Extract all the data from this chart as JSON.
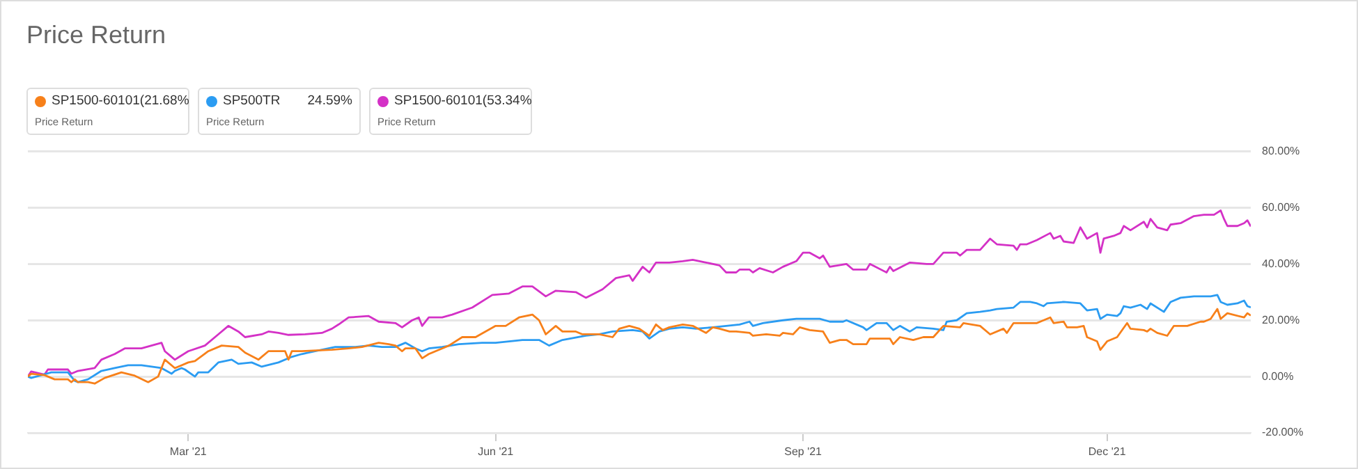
{
  "chart_data": {
    "type": "line",
    "title": "Price Return",
    "legend": "top left",
    "grid": "y",
    "marker": "none",
    "line_style": "solid",
    "xlim": [
      "2021-01-12",
      "2022-01-13"
    ],
    "xticks": [
      {
        "value": "2021-03-01",
        "label": "Mar '21"
      },
      {
        "value": "2021-06-01",
        "label": "Jun '21"
      },
      {
        "value": "2021-09-01",
        "label": "Sep '21"
      },
      {
        "value": "2021-12-01",
        "label": "Dec '21"
      }
    ],
    "ylim": [
      -20,
      80
    ],
    "yticks": [
      {
        "value": -20,
        "label": "-20.00%"
      },
      {
        "value": 0,
        "label": "0.00%"
      },
      {
        "value": 20,
        "label": "20.00%"
      },
      {
        "value": 40,
        "label": "40.00%"
      },
      {
        "value": 60,
        "label": "60.00%"
      },
      {
        "value": 80,
        "label": "80.00%"
      }
    ],
    "annotations": [
      "21.68%",
      "Price Return",
      "24.59%",
      "Price Return",
      "53.34%",
      "Price Return"
    ],
    "series": [
      {
        "name": "SP1500-60101(",
        "color": "#f7801a",
        "x": [
          "2021-01-12",
          "2021-01-13",
          "2021-01-17",
          "2021-01-20",
          "2021-01-24",
          "2021-01-25",
          "2021-01-26",
          "2021-01-27",
          "2021-01-30",
          "2021-02-01",
          "2021-02-04",
          "2021-02-09",
          "2021-02-13",
          "2021-02-17",
          "2021-02-20",
          "2021-02-22",
          "2021-02-25",
          "2021-02-27",
          "2021-03-01",
          "2021-03-03",
          "2021-03-07",
          "2021-03-11",
          "2021-03-16",
          "2021-03-18",
          "2021-03-22",
          "2021-03-25",
          "2021-03-30",
          "2021-03-31",
          "2021-04-01",
          "2021-04-04",
          "2021-04-13",
          "2021-04-18",
          "2021-04-22",
          "2021-04-27",
          "2021-04-30",
          "2021-05-02",
          "2021-05-04",
          "2021-05-05",
          "2021-05-08",
          "2021-05-10",
          "2021-05-12",
          "2021-05-16",
          "2021-05-18",
          "2021-05-22",
          "2021-05-26",
          "2021-06-01",
          "2021-06-04",
          "2021-06-08",
          "2021-06-12",
          "2021-06-14",
          "2021-06-16",
          "2021-06-19",
          "2021-06-21",
          "2021-06-25",
          "2021-06-27",
          "2021-07-02",
          "2021-07-06",
          "2021-07-08",
          "2021-07-11",
          "2021-07-14",
          "2021-07-17",
          "2021-07-19",
          "2021-07-21",
          "2021-07-23",
          "2021-07-27",
          "2021-07-30",
          "2021-08-03",
          "2021-08-05",
          "2021-08-07",
          "2021-08-10",
          "2021-08-12",
          "2021-08-16",
          "2021-08-17",
          "2021-08-21",
          "2021-08-25",
          "2021-08-26",
          "2021-08-29",
          "2021-08-31",
          "2021-09-03",
          "2021-09-07",
          "2021-09-09",
          "2021-09-12",
          "2021-09-14",
          "2021-09-16",
          "2021-09-20",
          "2021-09-21",
          "2021-09-27",
          "2021-09-28",
          "2021-09-30",
          "2021-10-04",
          "2021-10-07",
          "2021-10-10",
          "2021-10-13",
          "2021-10-18",
          "2021-10-19",
          "2021-10-24",
          "2021-10-27",
          "2021-10-31",
          "2021-11-01",
          "2021-11-03",
          "2021-11-10",
          "2021-11-14",
          "2021-11-15",
          "2021-11-18",
          "2021-11-19",
          "2021-11-22",
          "2021-11-24",
          "2021-11-25",
          "2021-11-28",
          "2021-11-29",
          "2021-12-01",
          "2021-12-04",
          "2021-12-07",
          "2021-12-08",
          "2021-12-12",
          "2021-12-13",
          "2021-12-14",
          "2021-12-16",
          "2021-12-19",
          "2021-12-21",
          "2021-12-25",
          "2021-12-29",
          "2021-12-30",
          "2022-01-01",
          "2022-01-03",
          "2022-01-04",
          "2022-01-06",
          "2022-01-11",
          "2022-01-12",
          "2022-01-13"
        ],
        "values": [
          0,
          1,
          0.5,
          -1,
          -1,
          -2,
          -1,
          -2,
          -2,
          -2.5,
          -0.5,
          1.5,
          0.3,
          -2,
          0,
          6,
          3,
          4,
          5,
          5.5,
          9,
          11,
          10.5,
          8.5,
          6,
          9,
          9,
          6,
          9,
          9,
          9.5,
          10,
          10.5,
          12,
          11.5,
          11,
          9,
          10,
          10,
          6.5,
          8,
          10,
          11,
          14,
          14,
          18,
          18,
          21,
          22,
          20,
          15,
          18,
          16,
          16,
          15,
          15,
          14,
          17,
          18,
          17,
          14.5,
          18.5,
          16.5,
          17.5,
          18.5,
          18,
          15.5,
          17.5,
          17,
          16,
          16,
          15.5,
          14.5,
          15,
          14.5,
          15.5,
          15,
          17.5,
          16.5,
          16,
          12,
          13,
          13,
          11.5,
          11.5,
          13.5,
          13.5,
          11.5,
          14,
          13,
          14,
          14,
          18,
          17.5,
          19,
          18,
          15,
          17,
          15.5,
          19,
          19,
          21,
          19,
          19.5,
          17.5,
          17.5,
          18,
          14,
          12.5,
          9.5,
          12.5,
          14,
          19,
          17,
          16.5,
          16,
          17,
          15.5,
          14.5,
          18,
          18,
          19.5,
          19.5,
          20.5,
          24,
          20.5,
          22.5,
          21,
          22.5,
          21.68
        ]
      },
      {
        "name": "SP500TR",
        "color": "#2b9cf2",
        "x": [
          "2021-01-12",
          "2021-01-13",
          "2021-01-17",
          "2021-01-19",
          "2021-01-24",
          "2021-01-26",
          "2021-01-27",
          "2021-01-30",
          "2021-02-03",
          "2021-02-07",
          "2021-02-11",
          "2021-02-15",
          "2021-02-21",
          "2021-02-24",
          "2021-02-25",
          "2021-02-27",
          "2021-02-28",
          "2021-03-03",
          "2021-03-04",
          "2021-03-07",
          "2021-03-10",
          "2021-03-14",
          "2021-03-16",
          "2021-03-20",
          "2021-03-23",
          "2021-03-28",
          "2021-04-01",
          "2021-04-04",
          "2021-04-08",
          "2021-04-14",
          "2021-04-20",
          "2021-04-24",
          "2021-04-28",
          "2021-05-02",
          "2021-05-05",
          "2021-05-08",
          "2021-05-10",
          "2021-05-12",
          "2021-05-16",
          "2021-05-21",
          "2021-05-28",
          "2021-06-01",
          "2021-06-09",
          "2021-06-14",
          "2021-06-17",
          "2021-06-21",
          "2021-06-28",
          "2021-07-02",
          "2021-07-06",
          "2021-07-12",
          "2021-07-15",
          "2021-07-17",
          "2021-07-20",
          "2021-07-23",
          "2021-07-27",
          "2021-07-31",
          "2021-08-05",
          "2021-08-09",
          "2021-08-13",
          "2021-08-16",
          "2021-08-17",
          "2021-08-20",
          "2021-08-26",
          "2021-08-30",
          "2021-09-06",
          "2021-09-09",
          "2021-09-13",
          "2021-09-14",
          "2021-09-19",
          "2021-09-20",
          "2021-09-23",
          "2021-09-26",
          "2021-09-28",
          "2021-09-30",
          "2021-10-03",
          "2021-10-05",
          "2021-10-10",
          "2021-10-13",
          "2021-10-14",
          "2021-10-17",
          "2021-10-20",
          "2021-10-24",
          "2021-10-27",
          "2021-10-29",
          "2021-11-03",
          "2021-11-05",
          "2021-11-08",
          "2021-11-10",
          "2021-11-12",
          "2021-11-13",
          "2021-11-18",
          "2021-11-23",
          "2021-11-25",
          "2021-11-28",
          "2021-11-29",
          "2021-12-01",
          "2021-12-04",
          "2021-12-05",
          "2021-12-06",
          "2021-12-08",
          "2021-12-11",
          "2021-12-13",
          "2021-12-14",
          "2021-12-18",
          "2021-12-20",
          "2021-12-23",
          "2021-12-27",
          "2022-01-01",
          "2022-01-03",
          "2022-01-04",
          "2022-01-06",
          "2022-01-09",
          "2022-01-11",
          "2022-01-12",
          "2022-01-13"
        ],
        "values": [
          0,
          -0.5,
          0.8,
          1.5,
          1.5,
          -1.5,
          -2,
          -1,
          2,
          3,
          4,
          4,
          3,
          1,
          2,
          3,
          2.5,
          0,
          1.5,
          1.5,
          5,
          6,
          4.5,
          5,
          3.5,
          5,
          7,
          8,
          9,
          10.5,
          10.5,
          11,
          10.5,
          10.5,
          12,
          10,
          9,
          10,
          10.5,
          11.5,
          12,
          12,
          13,
          13,
          11,
          13,
          14.5,
          15,
          16,
          16.5,
          16,
          13.5,
          16,
          17,
          17.5,
          17,
          17.5,
          18,
          18.5,
          19.5,
          18,
          19,
          20,
          20.5,
          20.5,
          19.5,
          19.5,
          20,
          17.5,
          16.5,
          19,
          19,
          16.5,
          18,
          16,
          17.5,
          17,
          16.5,
          19.5,
          20,
          22.5,
          23,
          23.5,
          24,
          24.5,
          26.5,
          26.5,
          26,
          25,
          26,
          26.5,
          26,
          23.5,
          24,
          20.5,
          22,
          21.5,
          22.5,
          25,
          24.5,
          25.5,
          24,
          26,
          23,
          26.5,
          28,
          28.5,
          28.5,
          29,
          26.5,
          25.5,
          26,
          27,
          25,
          24.59
        ]
      },
      {
        "name": "SP1500-60101(",
        "color": "#d431c6",
        "x": [
          "2021-01-12",
          "2021-01-13",
          "2021-01-17",
          "2021-01-18",
          "2021-01-24",
          "2021-01-25",
          "2021-01-27",
          "2021-02-01",
          "2021-02-03",
          "2021-02-07",
          "2021-02-10",
          "2021-02-15",
          "2021-02-21",
          "2021-02-22",
          "2021-02-25",
          "2021-03-01",
          "2021-03-06",
          "2021-03-10",
          "2021-03-13",
          "2021-03-16",
          "2021-03-18",
          "2021-03-23",
          "2021-03-25",
          "2021-03-28",
          "2021-03-31",
          "2021-04-05",
          "2021-04-10",
          "2021-04-13",
          "2021-04-15",
          "2021-04-18",
          "2021-04-24",
          "2021-04-27",
          "2021-05-02",
          "2021-05-04",
          "2021-05-07",
          "2021-05-09",
          "2021-05-10",
          "2021-05-12",
          "2021-05-16",
          "2021-05-19",
          "2021-05-25",
          "2021-05-31",
          "2021-06-05",
          "2021-06-09",
          "2021-06-12",
          "2021-06-16",
          "2021-06-19",
          "2021-06-25",
          "2021-06-28",
          "2021-07-03",
          "2021-07-07",
          "2021-07-11",
          "2021-07-12",
          "2021-07-15",
          "2021-07-17",
          "2021-07-19",
          "2021-07-23",
          "2021-07-27",
          "2021-07-30",
          "2021-08-03",
          "2021-08-07",
          "2021-08-09",
          "2021-08-12",
          "2021-08-13",
          "2021-08-16",
          "2021-08-17",
          "2021-08-19",
          "2021-08-23",
          "2021-08-26",
          "2021-08-30",
          "2021-09-01",
          "2021-09-03",
          "2021-09-06",
          "2021-09-07",
          "2021-09-09",
          "2021-09-14",
          "2021-09-16",
          "2021-09-20",
          "2021-09-21",
          "2021-09-26",
          "2021-09-27",
          "2021-09-28",
          "2021-10-03",
          "2021-10-08",
          "2021-10-10",
          "2021-10-13",
          "2021-10-17",
          "2021-10-18",
          "2021-10-20",
          "2021-10-24",
          "2021-10-27",
          "2021-10-29",
          "2021-11-03",
          "2021-11-04",
          "2021-11-05",
          "2021-11-07",
          "2021-11-10",
          "2021-11-14",
          "2021-11-15",
          "2021-11-17",
          "2021-11-18",
          "2021-11-21",
          "2021-11-23",
          "2021-11-25",
          "2021-11-28",
          "2021-11-29",
          "2021-11-30",
          "2021-12-03",
          "2021-12-05",
          "2021-12-06",
          "2021-12-08",
          "2021-12-12",
          "2021-12-13",
          "2021-12-14",
          "2021-12-16",
          "2021-12-19",
          "2021-12-20",
          "2021-12-23",
          "2021-12-27",
          "2021-12-30",
          "2022-01-02",
          "2022-01-04",
          "2022-01-05",
          "2022-01-06",
          "2022-01-09",
          "2022-01-11",
          "2022-01-12",
          "2022-01-13"
        ],
        "values": [
          0,
          1.8,
          0.7,
          2.5,
          2.5,
          1,
          2,
          3,
          6,
          8,
          10,
          10,
          12,
          9,
          6,
          9,
          11,
          15,
          18,
          16,
          14,
          15,
          16,
          15.5,
          14.8,
          15,
          15.5,
          17,
          18.5,
          21,
          21.5,
          19.5,
          19,
          17.5,
          20,
          21,
          18,
          21,
          21,
          22,
          24.5,
          29,
          29.5,
          32,
          32,
          28.5,
          30.5,
          30,
          28,
          31,
          35,
          36,
          34,
          39,
          37,
          40.5,
          40.5,
          41,
          41.5,
          40.5,
          39.5,
          37,
          37,
          38,
          38,
          37,
          38.5,
          37,
          39,
          41,
          44,
          44,
          42,
          43,
          39,
          40,
          38,
          38,
          40,
          37,
          39,
          37.5,
          40.5,
          40,
          40,
          44,
          44,
          43,
          45,
          45,
          49,
          47,
          46.5,
          45,
          47,
          47,
          48.5,
          51,
          49,
          50,
          48,
          47.5,
          53,
          49,
          51,
          44,
          49,
          50,
          51,
          53.5,
          52,
          55,
          53,
          56,
          53,
          52,
          54,
          54.5,
          57,
          57.5,
          57.5,
          59,
          56,
          53.5,
          53.5,
          54.5,
          55.5,
          53.34
        ]
      }
    ]
  }
}
